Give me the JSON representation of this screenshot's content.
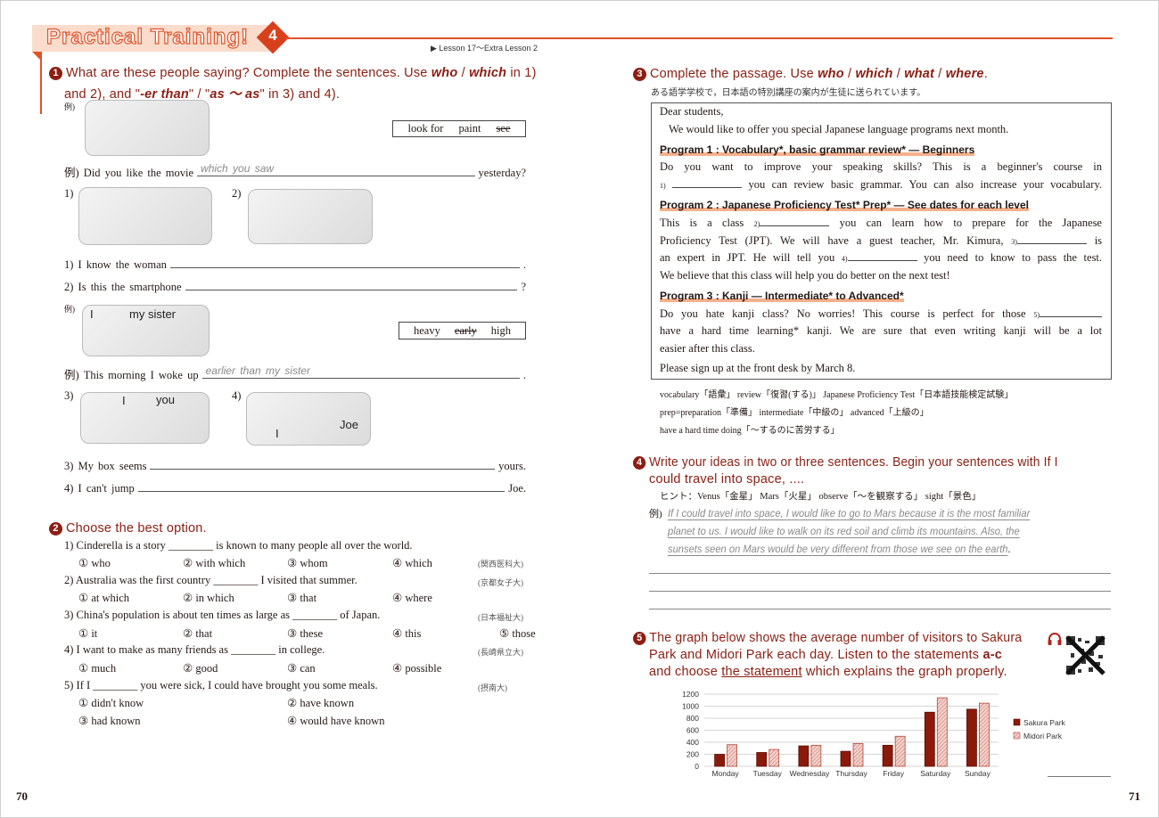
{
  "header": {
    "title": "Practical Training!",
    "number": "4",
    "lesson_range": "▶ Lesson 17～Extra Lesson 2"
  },
  "page_numbers": {
    "left": "70",
    "right": "71"
  },
  "q1": {
    "num": "1",
    "h1": [
      "What are these people saying?  Complete the sentences.  Use ",
      "who",
      " / ",
      "which",
      " in 1)"
    ],
    "h2": [
      "and 2), and \"",
      "-er than",
      "\" / \"",
      "as ～ as",
      "\" in 3) and 4)."
    ],
    "ex_label": "例)",
    "box1": [
      "look for",
      "paint",
      "see"
    ],
    "ex1": {
      "label": "例) Did you like the movie",
      "answer": "which you saw",
      "end": "yesterday?"
    },
    "pic_labels": {
      "p1": "1)",
      "p2": "2)",
      "p3": "3)",
      "p4": "4)",
      "sister_i": "I",
      "sister": "my sister",
      "box_i": "I",
      "box_you": "you",
      "jump_i": "I",
      "joe": "Joe"
    },
    "s1": {
      "start": "1) I know the woman",
      "end": "."
    },
    "s2": {
      "start": "2) Is this the smartphone",
      "end": "?"
    },
    "box2": [
      "heavy",
      "early",
      "high"
    ],
    "ex2": {
      "label": "例) This morning I woke up",
      "answer": "earlier than my sister",
      "end": "."
    },
    "s3": {
      "start": "3) My box seems",
      "end": "yours."
    },
    "s4": {
      "start": "4) I can't jump",
      "end": "Joe."
    }
  },
  "q2": {
    "num": "2",
    "heading": "Choose the best option.",
    "items": [
      {
        "q": "1) Cinderella is a story ________ is known to many people all over the world.",
        "options": [
          "① who",
          "② with which",
          "③ whom",
          "④ which"
        ],
        "source": "(関西医科大)"
      },
      {
        "q": "2) Australia was the first country ________ I visited that summer.",
        "options": [
          "① at which",
          "② in which",
          "③ that",
          "④ where"
        ],
        "source": "(京都女子大)"
      },
      {
        "q": "3) China's population is about ten times as large as ________ of Japan.",
        "options": [
          "① it",
          "② that",
          "③ these",
          "④ this",
          "⑤ those"
        ],
        "source": "(日本福祉大)"
      },
      {
        "q": "4) I want to make as many friends as ________ in college.",
        "options": [
          "① much",
          "② good",
          "③ can",
          "④ possible"
        ],
        "source": "(長崎県立大)"
      },
      {
        "q": "5) If I ________ you were sick, I could have brought you some meals.",
        "options": [
          "① didn't know",
          "② have known",
          "③ had known",
          "④ would have known"
        ],
        "source": "(摂南大)"
      }
    ]
  },
  "q3": {
    "num": "3",
    "heading": [
      "Complete the passage.  Use ",
      "who",
      " / ",
      "which",
      " / ",
      "what",
      " / ",
      "where",
      "."
    ],
    "intro": "ある語学学校で，日本語の特別講座の案内が生徒に送られています。",
    "greeting": "Dear students,",
    "opening": "We would like to offer you special Japanese language programs next month.",
    "program1": "Program 1 : Vocabulary*, basic grammar review* — Beginners",
    "p1_l1": "Do you want to improve your speaking skills?  This is a beginner's course in",
    "p1_l2": [
      "1)",
      "you can review basic grammar.  You can also increase your vocabulary."
    ],
    "program2": "Program 2 : Japanese Proficiency Test* Prep* — See dates for each level",
    "p2_l1": [
      "This is a class",
      "2)",
      "you can learn how to prepare for the Japanese"
    ],
    "p2_l2": [
      "Proficiency Test (JPT).  We will have a guest teacher, Mr. Kimura,",
      "3)",
      "is"
    ],
    "p2_l3": [
      "an expert in JPT.  He will tell you",
      "4)",
      "you need to know to pass the test."
    ],
    "p2_l4": "We believe that this class will help you do better on the next test!",
    "program3": "Program 3 : Kanji — Intermediate* to Advanced*",
    "p3_l1": [
      "Do you hate kanji class?  No worries!  This course is perfect for those",
      "5)"
    ],
    "p3_l2": "have a hard time learning* kanji.  We are sure that even writing kanji will be a lot",
    "p3_l3": "easier after this class.",
    "closing": "Please sign up at the front desk by March 8.",
    "glossary": [
      "vocabulary「語彙」  review「復習(する)」  Japanese Proficiency Test「日本語技能検定試験」",
      "prep=preparation「準備」  intermediate「中級の」  advanced「上級の」",
      "have a hard time doing「～するのに苦労する」"
    ]
  },
  "q4": {
    "num": "4",
    "h1": "Write your ideas in two or three sentences.  Begin your sentences with If I",
    "h2": "could travel into space, ....",
    "hint": "ヒント：Venus「金星」  Mars「火星」  observe「～を観察する」  sight「景色」",
    "ex_label": "例)",
    "example": [
      "If I could travel into space, I would like to go to Mars because it is the most familiar",
      "planet to us.  I would like to walk on its red soil and climb its mountains.  Also, the",
      "sunsets seen on Mars would be very different from those we see on the earth"
    ],
    "ex_end": "."
  },
  "q5": {
    "num": "5",
    "h1": "The graph below shows the average number of visitors to Sakura",
    "h2a": "Park and Midori Park each day.  Listen to the statements ",
    "h2b": "a-c",
    "h3a": "and choose ",
    "h3b": "the statement",
    "h3c": " which explains the graph properly.",
    "icons": [
      "headphones-icon",
      "qr-code-icon"
    ]
  },
  "chart_data": {
    "type": "bar",
    "categories": [
      "Monday",
      "Tuesday",
      "Wednesday",
      "Thursday",
      "Friday",
      "Saturday",
      "Sunday"
    ],
    "series": [
      {
        "name": "Sakura Park",
        "values": [
          200,
          230,
          340,
          250,
          350,
          900,
          950
        ],
        "color": "#8b1a0a"
      },
      {
        "name": "Midori Park",
        "values": [
          360,
          280,
          350,
          380,
          500,
          1140,
          1050
        ],
        "color": "#e8b3a8",
        "pattern": "hatched"
      }
    ],
    "yticks": [
      0,
      200,
      400,
      600,
      800,
      1000,
      1200
    ],
    "ylim": [
      0,
      1200
    ],
    "grid": true,
    "legend": "right"
  },
  "colors": {
    "accent": "#e0522a",
    "heading": "#8b1e12",
    "band": "#f9dccb"
  }
}
